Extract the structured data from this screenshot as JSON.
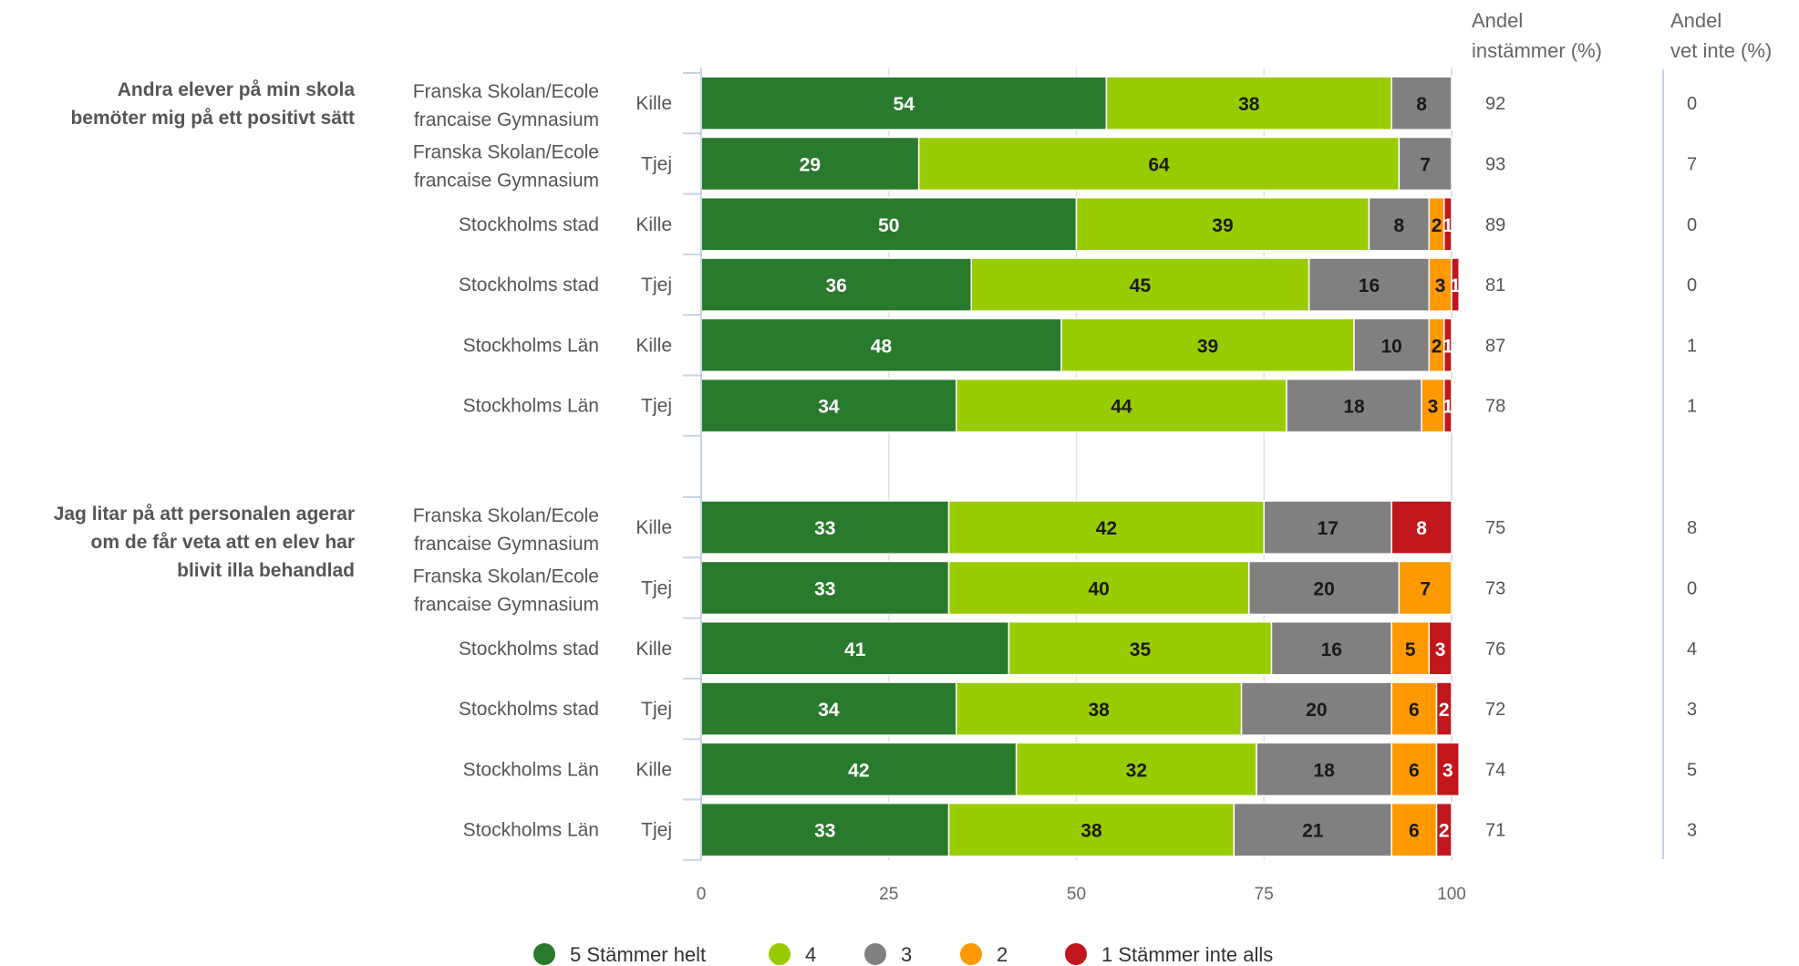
{
  "chart_data": {
    "type": "bar",
    "stacked": true,
    "orientation": "horizontal",
    "xlim": [
      0,
      100
    ],
    "xticks": [
      "0",
      "25",
      "50",
      "75",
      "100"
    ],
    "grid": true,
    "legend_position": "bottom",
    "column_headers": {
      "andel_instammer": [
        "Andel",
        "instämmer (%)"
      ],
      "andel_vet_inte": [
        "Andel",
        "vet inte (%)"
      ]
    },
    "series": [
      {
        "name": "5 Stämmer helt",
        "color": "#2a7a2e"
      },
      {
        "name": "4",
        "color": "#99cc00"
      },
      {
        "name": "3",
        "color": "#808080"
      },
      {
        "name": "2",
        "color": "#ff9900"
      },
      {
        "name": "1 Stämmer inte alls",
        "color": "#c0161c"
      }
    ],
    "groups": [
      {
        "question": [
          "Andra elever på min skola",
          "bemöter mig på ett positivt sätt"
        ],
        "rows": [
          {
            "school": [
              "Franska Skolan/Ecole",
              "francaise Gymnasium"
            ],
            "gender": "Kille",
            "values": [
              54,
              38,
              8,
              0,
              0
            ],
            "andel_instammer": "92",
            "andel_vet_inte": "0"
          },
          {
            "school": [
              "Franska Skolan/Ecole",
              "francaise Gymnasium"
            ],
            "gender": "Tjej",
            "values": [
              29,
              64,
              7,
              0,
              0
            ],
            "andel_instammer": "93",
            "andel_vet_inte": "7"
          },
          {
            "school": [
              "Stockholms stad"
            ],
            "gender": "Kille",
            "values": [
              50,
              39,
              8,
              2,
              1
            ],
            "andel_instammer": "89",
            "andel_vet_inte": "0"
          },
          {
            "school": [
              "Stockholms stad"
            ],
            "gender": "Tjej",
            "values": [
              36,
              45,
              16,
              3,
              1
            ],
            "andel_instammer": "81",
            "andel_vet_inte": "0"
          },
          {
            "school": [
              "Stockholms Län"
            ],
            "gender": "Kille",
            "values": [
              48,
              39,
              10,
              2,
              1
            ],
            "andel_instammer": "87",
            "andel_vet_inte": "1"
          },
          {
            "school": [
              "Stockholms Län"
            ],
            "gender": "Tjej",
            "values": [
              34,
              44,
              18,
              3,
              1
            ],
            "andel_instammer": "78",
            "andel_vet_inte": "1"
          }
        ]
      },
      {
        "question": [
          "Jag litar på att personalen agerar",
          "om de får veta att en elev har",
          "blivit illa behandlad"
        ],
        "rows": [
          {
            "school": [
              "Franska Skolan/Ecole",
              "francaise Gymnasium"
            ],
            "gender": "Kille",
            "values": [
              33,
              42,
              17,
              0,
              8
            ],
            "andel_instammer": "75",
            "andel_vet_inte": "8"
          },
          {
            "school": [
              "Franska Skolan/Ecole",
              "francaise Gymnasium"
            ],
            "gender": "Tjej",
            "values": [
              33,
              40,
              20,
              7,
              0
            ],
            "andel_instammer": "73",
            "andel_vet_inte": "0"
          },
          {
            "school": [
              "Stockholms stad"
            ],
            "gender": "Kille",
            "values": [
              41,
              35,
              16,
              5,
              3
            ],
            "andel_instammer": "76",
            "andel_vet_inte": "4"
          },
          {
            "school": [
              "Stockholms stad"
            ],
            "gender": "Tjej",
            "values": [
              34,
              38,
              20,
              6,
              2
            ],
            "andel_instammer": "72",
            "andel_vet_inte": "3"
          },
          {
            "school": [
              "Stockholms Län"
            ],
            "gender": "Kille",
            "values": [
              42,
              32,
              18,
              6,
              3
            ],
            "andel_instammer": "74",
            "andel_vet_inte": "5"
          },
          {
            "school": [
              "Stockholms Län"
            ],
            "gender": "Tjej",
            "values": [
              33,
              38,
              21,
              6,
              2
            ],
            "andel_instammer": "71",
            "andel_vet_inte": "3"
          }
        ]
      }
    ]
  }
}
